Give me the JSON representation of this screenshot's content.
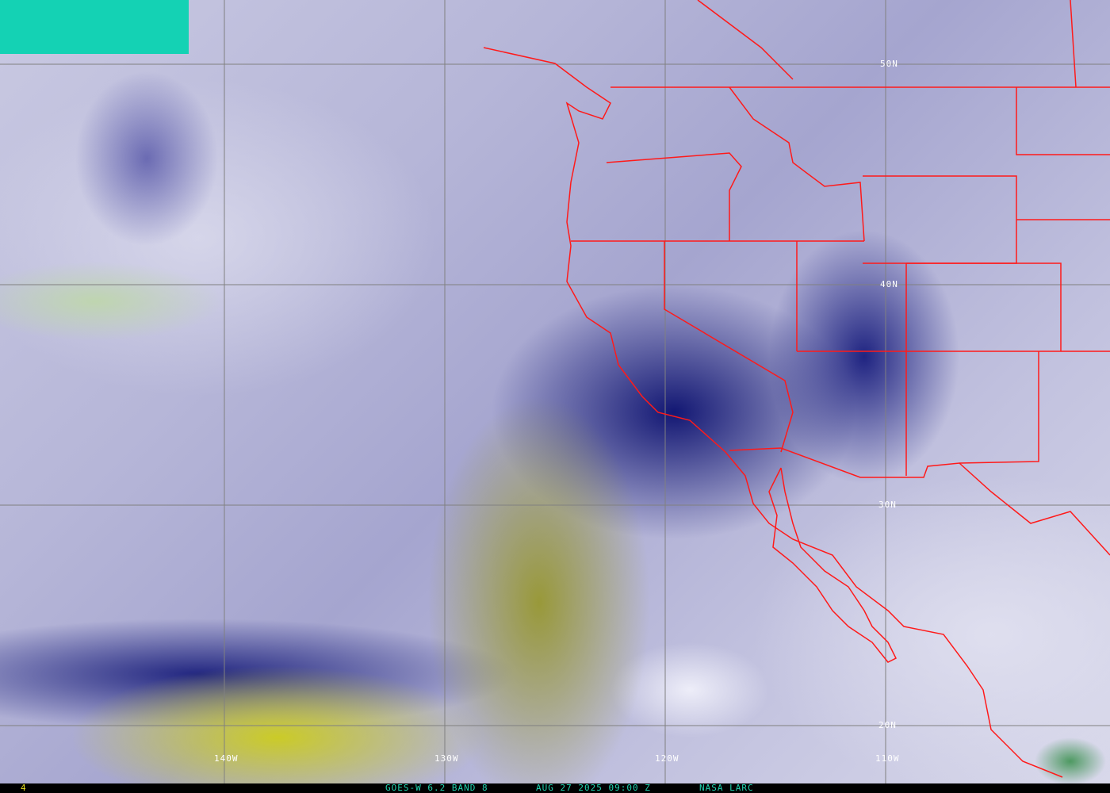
{
  "colors": {
    "border_lines": "#ff1a1a",
    "grid_lines": "#808080",
    "status_text": "#20d4b0",
    "frame_number": "#e8e020",
    "corner_block": "#14d2b4"
  },
  "grid": {
    "latitudes": [
      {
        "label": "50N"
      },
      {
        "label": "40N"
      },
      {
        "label": "30N"
      },
      {
        "label": "20N"
      }
    ],
    "longitudes": [
      {
        "label": "140W"
      },
      {
        "label": "130W"
      },
      {
        "label": "120W"
      },
      {
        "label": "110W"
      }
    ]
  },
  "status": {
    "frame_number": "4",
    "product": "GOES-W 6.2 BAND 8",
    "timestamp": "AUG 27 2025 09:00 Z",
    "source": "NASA LARC"
  }
}
